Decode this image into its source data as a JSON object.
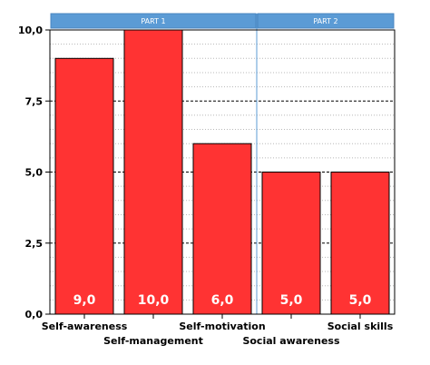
{
  "chart_data": {
    "type": "bar",
    "categories": [
      "Self-awareness",
      "Self-management",
      "Self-motivation",
      "Social awareness",
      "Social skills"
    ],
    "values": [
      9.0,
      10.0,
      6.0,
      5.0,
      5.0
    ],
    "value_labels": [
      "9,0",
      "10,0",
      "6,0",
      "5,0",
      "5,0"
    ],
    "panels": [
      {
        "label": "PART 1",
        "categories": [
          "Self-awareness",
          "Self-management",
          "Self-motivation"
        ]
      },
      {
        "label": "PART 2",
        "categories": [
          "Social awareness",
          "Social skills"
        ]
      }
    ],
    "ylim": [
      0,
      10
    ],
    "yticks": [
      0,
      2.5,
      5,
      7.5,
      10
    ],
    "ytick_labels": [
      "0,0",
      "2,5",
      "5,0",
      "7,5",
      "10,0"
    ],
    "grid": true,
    "colors": {
      "bar": "#ff3333",
      "panel_header": "#5b9bd5",
      "divider": "#5b9bd5"
    }
  }
}
